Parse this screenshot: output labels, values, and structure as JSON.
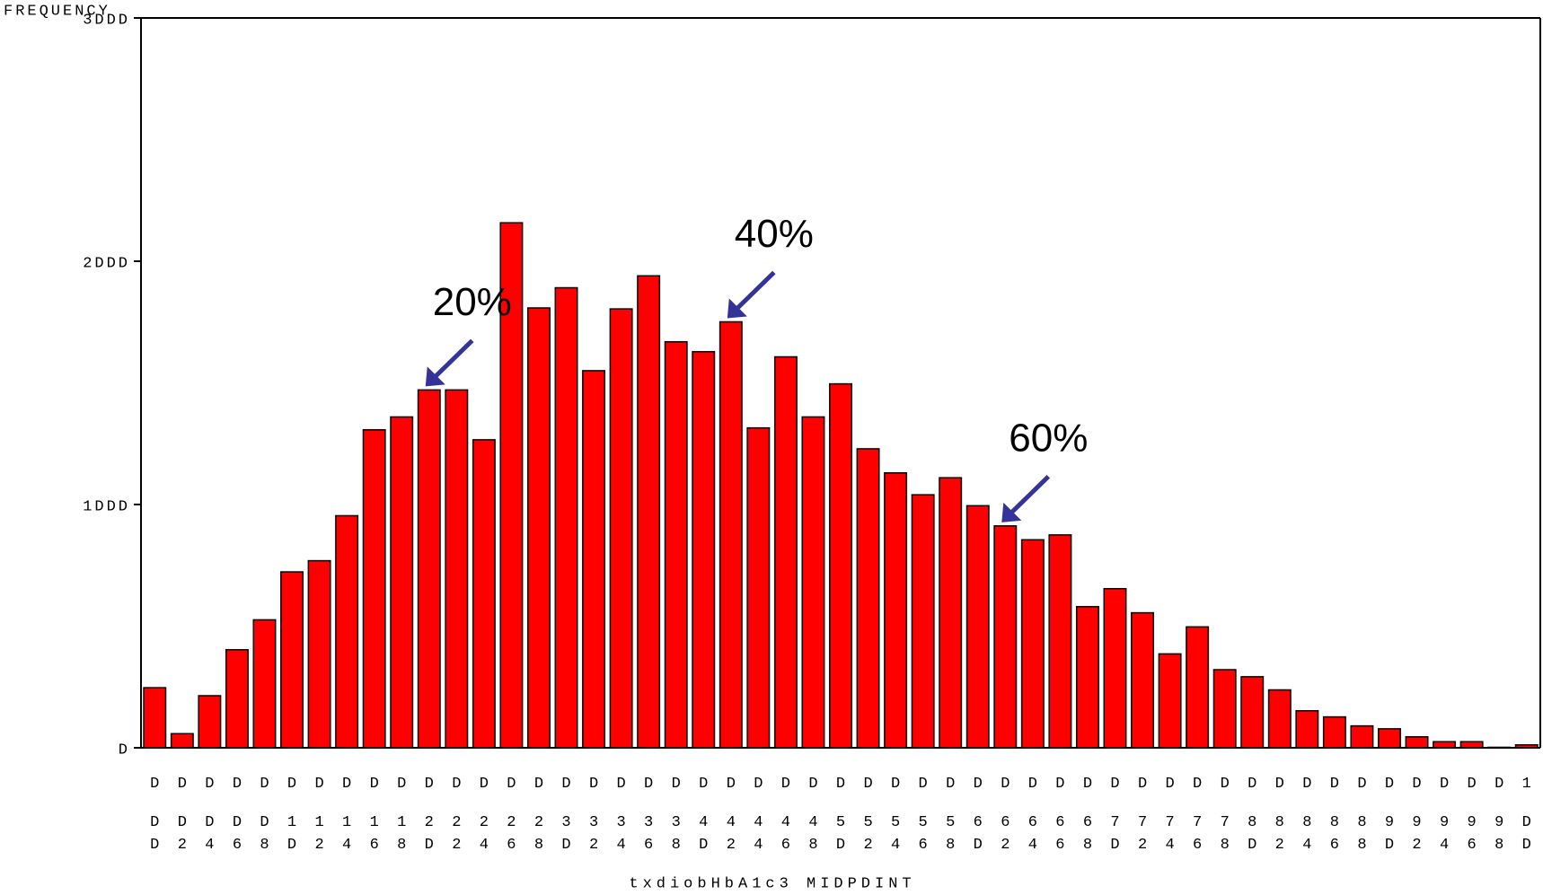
{
  "chart_data": {
    "type": "bar",
    "y_label": "FREQUENCY",
    "x_label": "txdiobHbA1c3 MIDPDINT",
    "categories": [
      "DDD",
      "DD2",
      "DD4",
      "DD6",
      "DD8",
      "D1D",
      "D12",
      "D14",
      "D16",
      "D18",
      "D2D",
      "D22",
      "D24",
      "D26",
      "D28",
      "D3D",
      "D32",
      "D34",
      "D36",
      "D38",
      "D4D",
      "D42",
      "D44",
      "D46",
      "D48",
      "D5D",
      "D52",
      "D54",
      "D56",
      "D58",
      "D6D",
      "D62",
      "D64",
      "D66",
      "D68",
      "D7D",
      "D72",
      "D74",
      "D76",
      "D78",
      "D8D",
      "D82",
      "D84",
      "D86",
      "D88",
      "D9D",
      "D92",
      "D94",
      "D96",
      "D98",
      "1DD"
    ],
    "values": [
      247,
      58,
      214,
      403,
      526,
      723,
      769,
      954,
      1307,
      1360,
      1471,
      1471,
      1266,
      2158,
      1808,
      1891,
      1550,
      1804,
      1940,
      1669,
      1628,
      1751,
      1315,
      1607,
      1360,
      1496,
      1229,
      1130,
      1040,
      1110,
      995,
      912,
      855,
      875,
      580,
      654,
      555,
      386,
      497,
      321,
      292,
      238,
      152,
      127,
      90,
      78,
      45,
      25,
      25,
      2,
      12
    ],
    "color": "#ff0000",
    "ylim": [
      0,
      3000
    ],
    "yticks": [
      {
        "value": 0,
        "label": "D"
      },
      {
        "value": 1000,
        "label": "1DDD"
      },
      {
        "value": 2000,
        "label": "2DDD"
      },
      {
        "value": 3000,
        "label": "3DDD"
      }
    ],
    "annotations": [
      {
        "text": "20%",
        "category": 10
      },
      {
        "text": "40%",
        "category": 21
      },
      {
        "text": "60%",
        "category": 31
      }
    ],
    "annotation_color": "#333399"
  }
}
